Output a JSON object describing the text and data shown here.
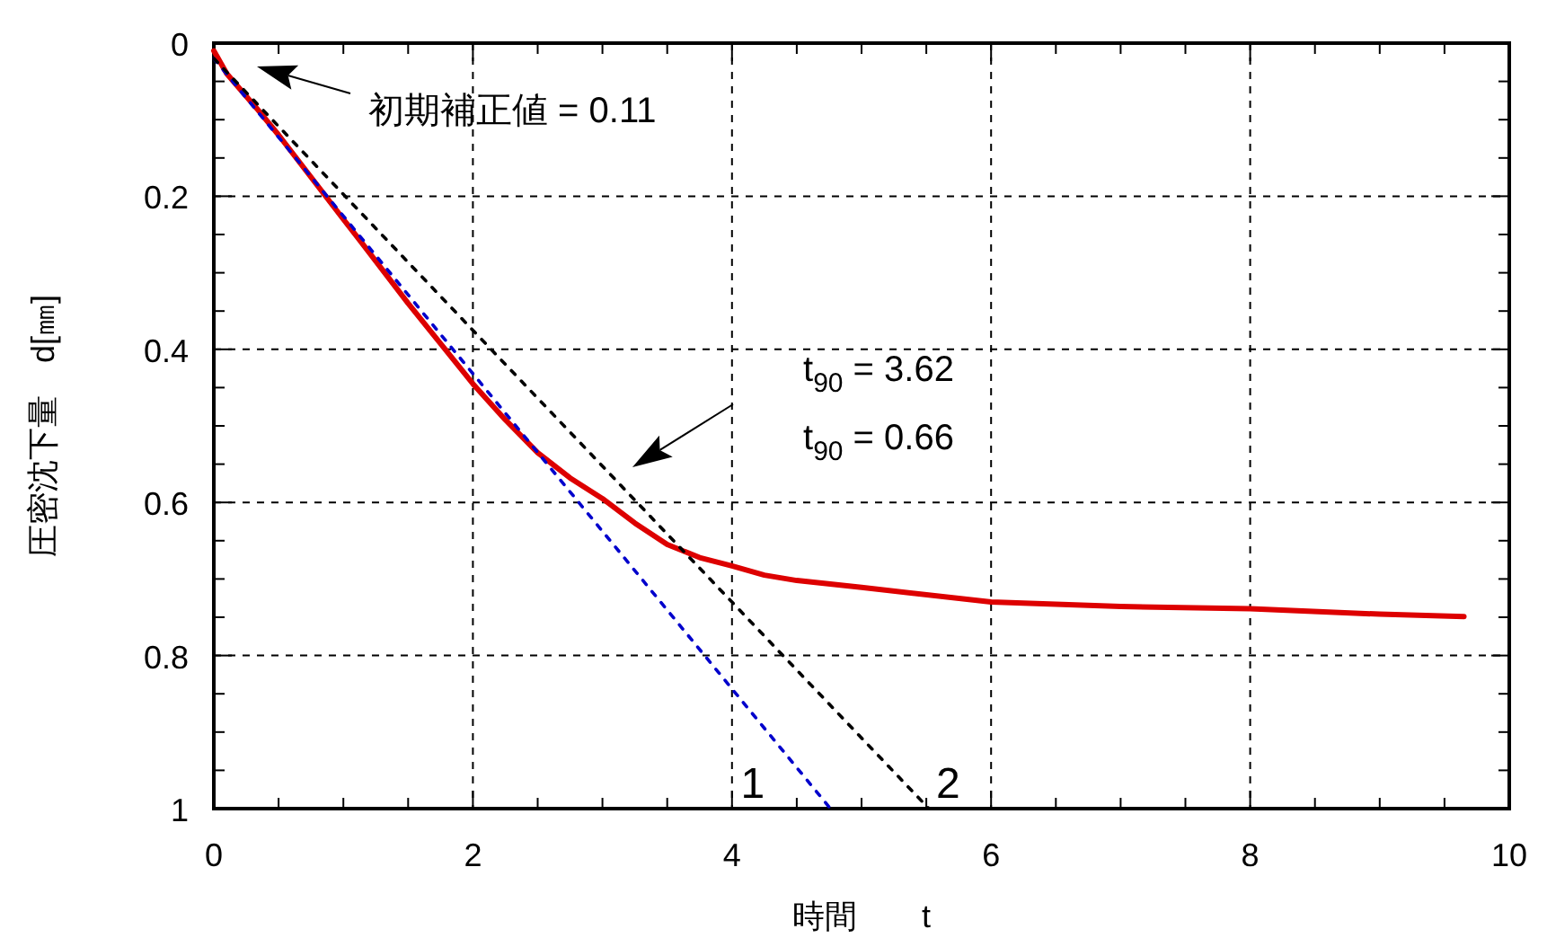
{
  "chart_data": {
    "type": "line",
    "xlabel": "時間　　t",
    "ylabel": "圧密沈下量　d[㎜]",
    "xlim": [
      0,
      10
    ],
    "ylim": [
      1,
      0
    ],
    "xticks": [
      0,
      {
        "value": 0.5,
        "label": null
      },
      {
        "value": 1,
        "label": null
      },
      {
        "value": 1.5,
        "label": null
      },
      2,
      {
        "value": 2.5,
        "label": null
      },
      {
        "value": 3,
        "label": null
      },
      {
        "value": 3.5,
        "label": null
      },
      4,
      {
        "value": 4.5,
        "label": null
      },
      {
        "value": 5,
        "label": null
      },
      {
        "value": 5.5,
        "label": null
      },
      6,
      {
        "value": 6.5,
        "label": null
      },
      {
        "value": 7,
        "label": null
      },
      {
        "value": 7.5,
        "label": null
      },
      8,
      {
        "value": 8.5,
        "label": null
      },
      {
        "value": 9,
        "label": null
      },
      {
        "value": 9.5,
        "label": null
      },
      10
    ],
    "yticks": [
      0,
      {
        "value": 0.05,
        "label": null
      },
      {
        "value": 0.1,
        "label": null
      },
      {
        "value": 0.15,
        "label": null
      },
      0.2,
      {
        "value": 0.25,
        "label": null
      },
      {
        "value": 0.3,
        "label": null
      },
      {
        "value": 0.35,
        "label": null
      },
      0.4,
      {
        "value": 0.45,
        "label": null
      },
      {
        "value": 0.5,
        "label": null
      },
      {
        "value": 0.55,
        "label": null
      },
      0.6,
      {
        "value": 0.65,
        "label": null
      },
      {
        "value": 0.7,
        "label": null
      },
      {
        "value": 0.75,
        "label": null
      },
      0.8,
      {
        "value": 0.85,
        "label": null
      },
      {
        "value": 0.9,
        "label": null
      },
      {
        "value": 0.95,
        "label": null
      },
      1
    ],
    "grid": true,
    "series": [
      {
        "color": "#dd0000",
        "line_style": "solid",
        "x": [
          0,
          0.1,
          0.33,
          0.5,
          1,
          1.12,
          1.5,
          2,
          2.25,
          2.5,
          2.75,
          3,
          3.25,
          3.5,
          3.75,
          4,
          4.25,
          4.5,
          5,
          6,
          7,
          8,
          9,
          9.65
        ],
        "values": [
          0.01,
          0.04,
          0.085,
          0.12,
          0.23,
          0.256,
          0.34,
          0.445,
          0.492,
          0.535,
          0.568,
          0.595,
          0.627,
          0.655,
          0.672,
          0.683,
          0.695,
          0.702,
          0.711,
          0.73,
          0.736,
          0.739,
          0.746,
          0.749
        ]
      },
      {
        "name": "1",
        "color": "#0000cc",
        "line_style": "dotted",
        "x": [
          0,
          4.76
        ],
        "values": [
          0.02,
          1
        ]
      },
      {
        "name": "2",
        "color": "#000000",
        "line_style": "dotted",
        "x": [
          0,
          5.52
        ],
        "values": [
          0.02,
          1
        ]
      }
    ],
    "annotations": [
      "初期補正値 = 0.11",
      "t$_{90}$ = 3.62",
      "t$_{90}$ = 0.66"
    ]
  }
}
